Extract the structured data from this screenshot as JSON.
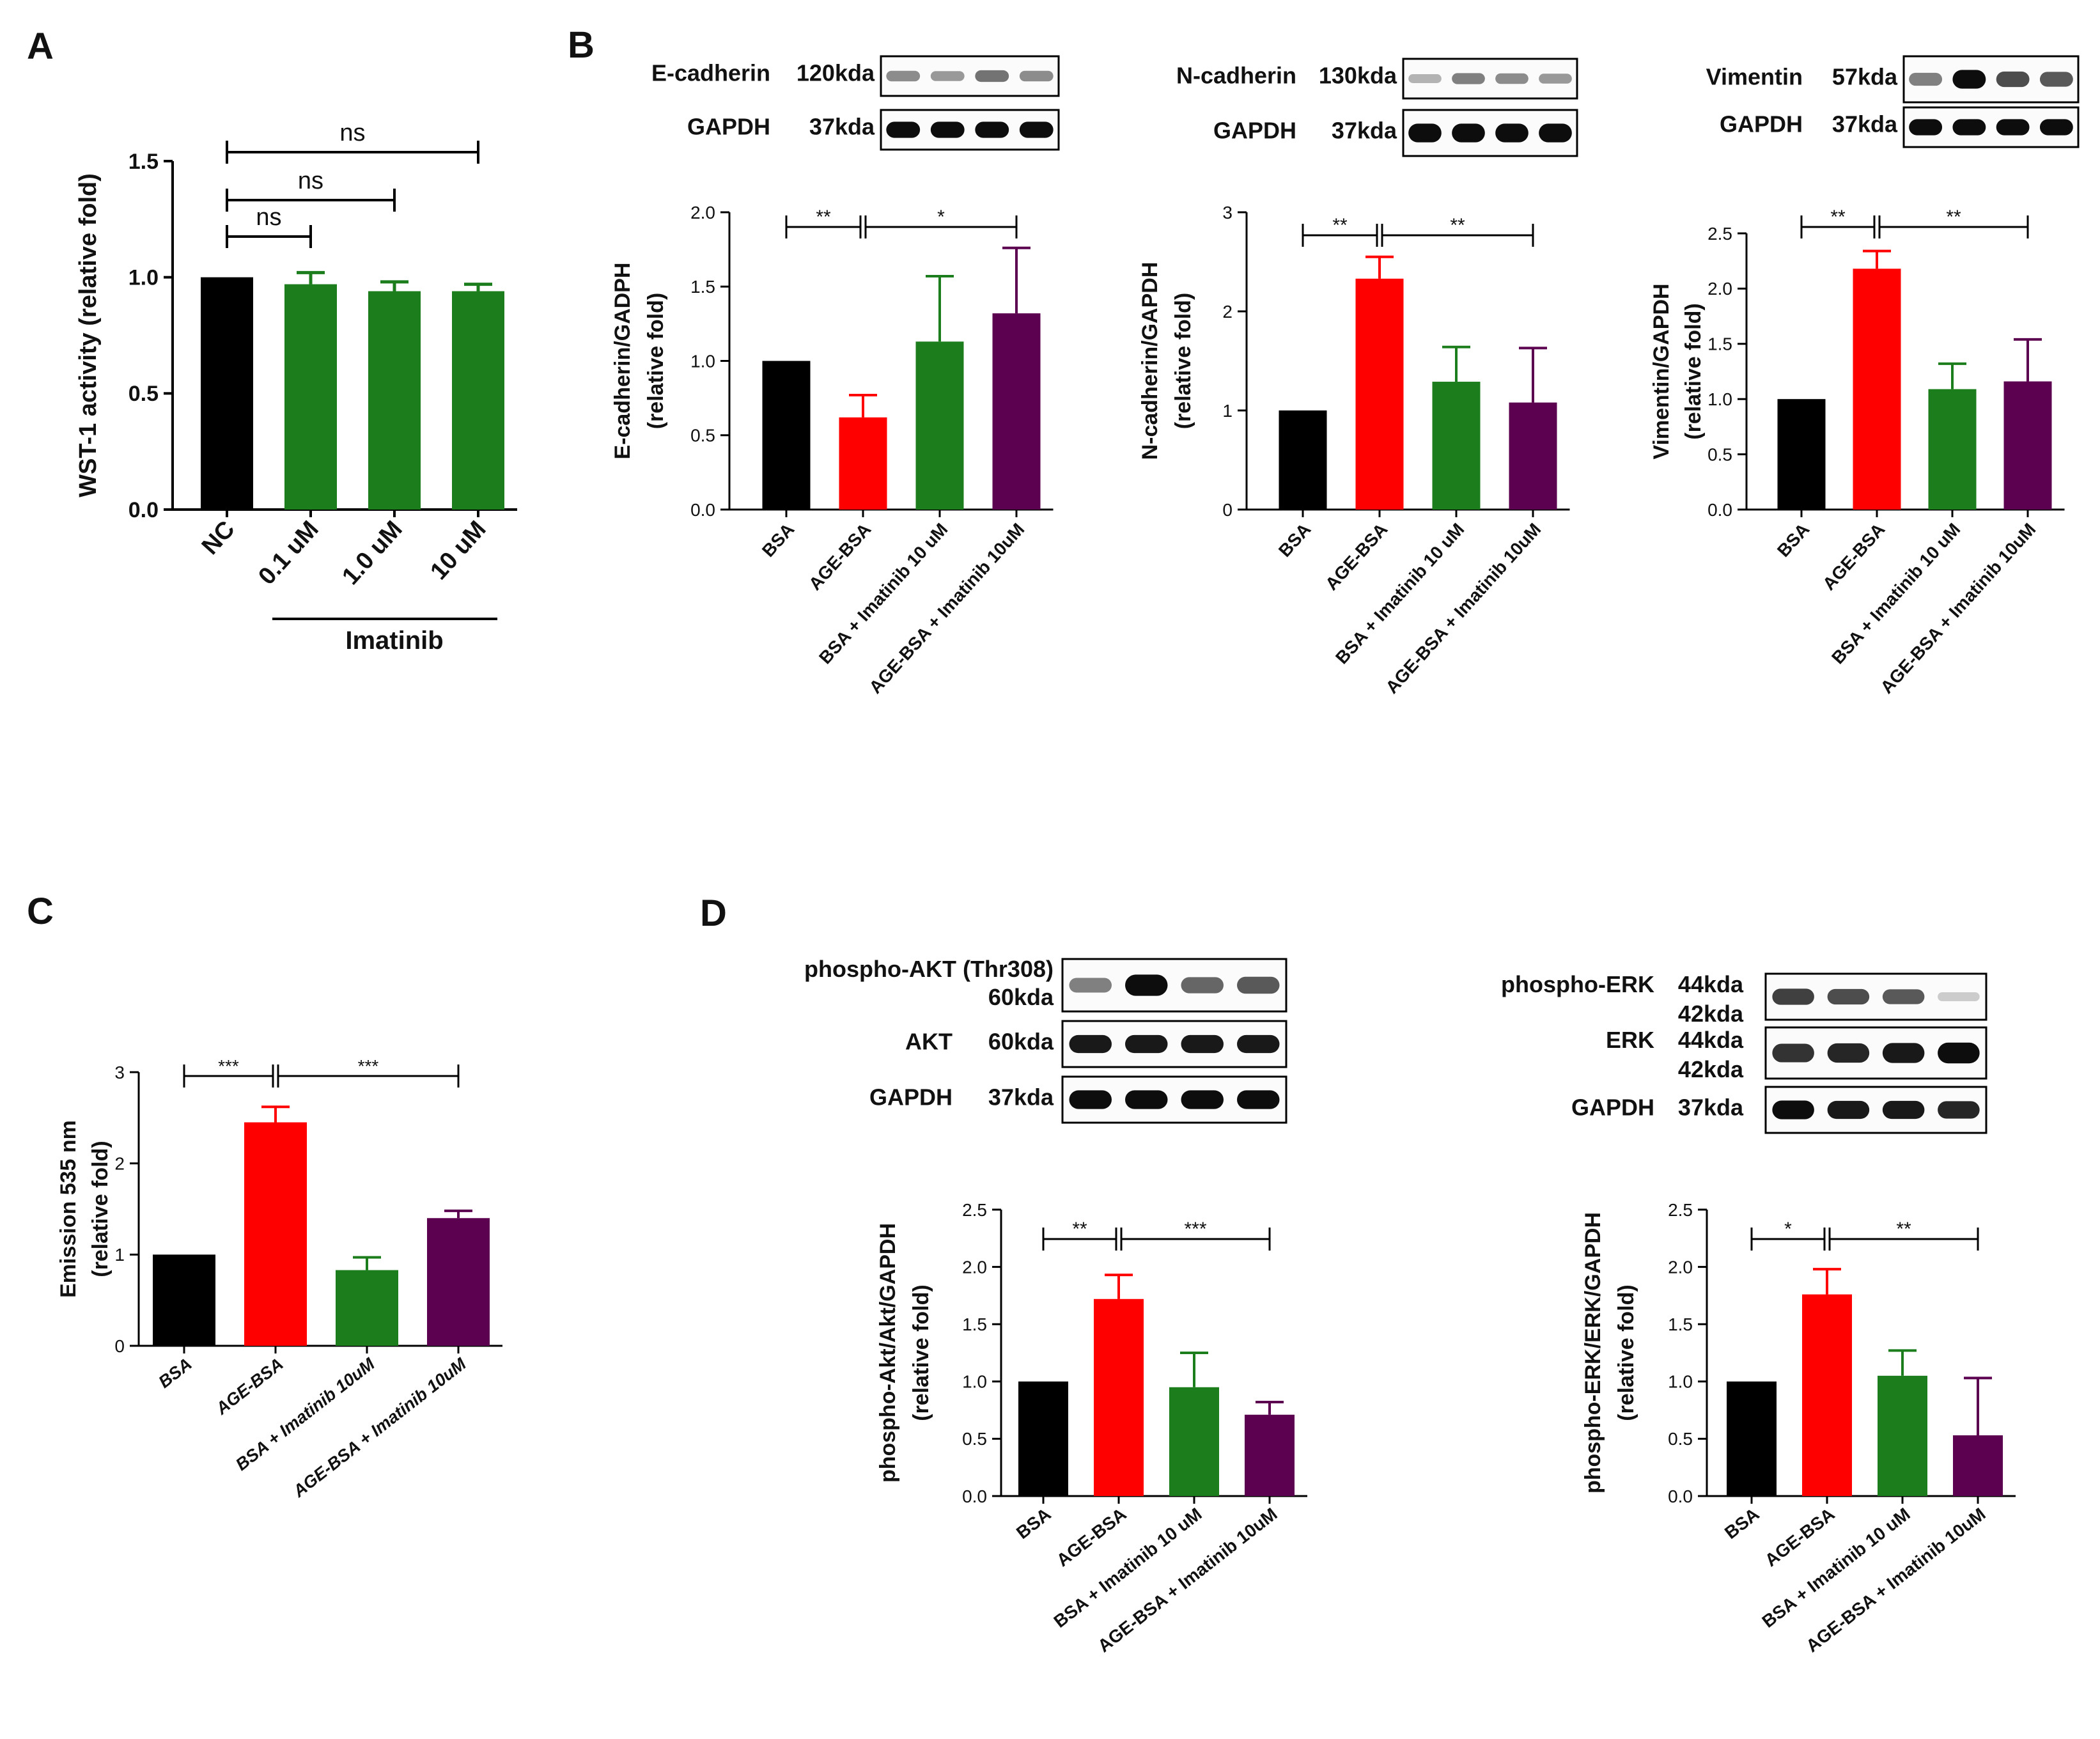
{
  "colors": {
    "black": "#000000",
    "red": "#ff0000",
    "green": "#1c7d1c",
    "purple": "#5c0050"
  },
  "panel_letters": [
    "A",
    "B",
    "C",
    "D"
  ],
  "blots": [
    {
      "rows": [
        {
          "protein": "E-cadherin",
          "kda": "120kda",
          "intensity": [
            0.45,
            0.4,
            0.55,
            0.45
          ]
        },
        {
          "protein": "GAPDH",
          "kda": "37kda",
          "intensity": [
            0.95,
            0.95,
            0.95,
            0.95
          ]
        }
      ]
    },
    {
      "rows": [
        {
          "protein": "N-cadherin",
          "kda": "130kda",
          "intensity": [
            0.3,
            0.5,
            0.45,
            0.4
          ]
        },
        {
          "protein": "GAPDH",
          "kda": "37kda",
          "intensity": [
            0.95,
            0.95,
            0.95,
            0.95
          ]
        }
      ]
    },
    {
      "rows": [
        {
          "protein": "Vimentin",
          "kda": "57kda",
          "intensity": [
            0.5,
            0.95,
            0.7,
            0.65
          ]
        },
        {
          "protein": "GAPDH",
          "kda": "37kda",
          "intensity": [
            0.95,
            0.95,
            0.95,
            0.95
          ]
        }
      ]
    },
    {
      "rows": [
        {
          "protein": "phospho-AKT (Thr308)",
          "kda": "60kda",
          "intensity": [
            0.5,
            0.95,
            0.6,
            0.65
          ]
        },
        {
          "protein": "AKT",
          "kda": "60kda",
          "intensity": [
            0.9,
            0.9,
            0.9,
            0.9
          ]
        },
        {
          "protein": "GAPDH",
          "kda": "37kda",
          "intensity": [
            0.95,
            0.95,
            0.95,
            0.95
          ]
        }
      ]
    },
    {
      "rows": [
        {
          "protein": "phospho-ERK",
          "kda": "44kda",
          "kda2": "42kda",
          "intensity": [
            0.75,
            0.7,
            0.65,
            0.2
          ]
        },
        {
          "protein": "ERK",
          "kda": "44kda",
          "kda2": "42kda",
          "intensity": [
            0.8,
            0.85,
            0.9,
            0.95
          ]
        },
        {
          "protein": "GAPDH",
          "kda": "37kda",
          "intensity": [
            0.95,
            0.9,
            0.9,
            0.85
          ]
        }
      ]
    }
  ],
  "chart_data": [
    {
      "id": "A",
      "type": "bar",
      "title": "",
      "ylabel": "WST-1 activity (relative fold)",
      "xlabel": "",
      "ylim": [
        0,
        1.5
      ],
      "yticks": [
        "0.0",
        "0.5",
        "1.0",
        "1.5"
      ],
      "categories": [
        "NC",
        "0.1 uM",
        "1.0 uM",
        "10 uM"
      ],
      "values": [
        1.0,
        0.97,
        0.94,
        0.94
      ],
      "errors": [
        0,
        0.05,
        0.04,
        0.03
      ],
      "bar_colors": [
        "black",
        "green",
        "green",
        "green"
      ],
      "group_label": "Imatinib",
      "significance": [
        {
          "from": 0,
          "to": 1,
          "label": "ns"
        },
        {
          "from": 0,
          "to": 2,
          "label": "ns"
        },
        {
          "from": 0,
          "to": 3,
          "label": "ns"
        }
      ]
    },
    {
      "id": "B1",
      "type": "bar",
      "ylabel": "E-cadherin/GADPH",
      "ylabel2": "(relative fold)",
      "ylim": [
        0,
        2.0
      ],
      "yticks": [
        "0.0",
        "0.5",
        "1.0",
        "1.5",
        "2.0"
      ],
      "categories": [
        "BSA",
        "AGE-BSA",
        "BSA + Imatinib 10 uM",
        "AGE-BSA + Imatinib 10uM"
      ],
      "values": [
        1.0,
        0.62,
        1.13,
        1.32
      ],
      "errors": [
        0,
        0.15,
        0.44,
        0.44
      ],
      "bar_colors": [
        "black",
        "red",
        "green",
        "purple"
      ],
      "significance": [
        {
          "from": 0,
          "to": 1,
          "label": "**"
        },
        {
          "from": 1,
          "to": 3,
          "label": "*"
        }
      ]
    },
    {
      "id": "B2",
      "type": "bar",
      "ylabel": "N-cadherin/GAPDH",
      "ylabel2": "(relative fold)",
      "ylim": [
        0,
        3
      ],
      "yticks": [
        "0",
        "1",
        "2",
        "3"
      ],
      "categories": [
        "BSA",
        "AGE-BSA",
        "BSA + Imatinib 10 uM",
        "AGE-BSA + Imatinib 10uM"
      ],
      "values": [
        1.0,
        2.33,
        1.29,
        1.08
      ],
      "errors": [
        0,
        0.22,
        0.35,
        0.55
      ],
      "bar_colors": [
        "black",
        "red",
        "green",
        "purple"
      ],
      "significance": [
        {
          "from": 0,
          "to": 1,
          "label": "**"
        },
        {
          "from": 1,
          "to": 3,
          "label": "**"
        }
      ]
    },
    {
      "id": "B3",
      "type": "bar",
      "ylabel": "Vimentin/GAPDH",
      "ylabel2": "(relative fold)",
      "ylim": [
        0,
        2.5
      ],
      "yticks": [
        "0.0",
        "0.5",
        "1.0",
        "1.5",
        "2.0",
        "2.5"
      ],
      "categories": [
        "BSA",
        "AGE-BSA",
        "BSA + Imatinib 10 uM",
        "AGE-BSA + Imatinib 10uM"
      ],
      "values": [
        1.0,
        2.18,
        1.09,
        1.16
      ],
      "errors": [
        0,
        0.16,
        0.23,
        0.38
      ],
      "bar_colors": [
        "black",
        "red",
        "green",
        "purple"
      ],
      "significance": [
        {
          "from": 0,
          "to": 1,
          "label": "**"
        },
        {
          "from": 1,
          "to": 3,
          "label": "**"
        }
      ]
    },
    {
      "id": "C",
      "type": "bar",
      "ylabel": "Emission 535 nm",
      "ylabel2": "(relative fold)",
      "ylim": [
        0,
        3
      ],
      "yticks": [
        "0",
        "1",
        "2",
        "3"
      ],
      "categories": [
        "BSA",
        "AGE-BSA",
        "BSA + Imatinib 10uM",
        "AGE-BSA + Imatinib 10uM"
      ],
      "values": [
        1.0,
        2.45,
        0.83,
        1.4
      ],
      "errors": [
        0,
        0.17,
        0.14,
        0.08
      ],
      "bar_colors": [
        "black",
        "red",
        "green",
        "purple"
      ],
      "italic_ticks": true,
      "significance": [
        {
          "from": 0,
          "to": 1,
          "label": "***"
        },
        {
          "from": 1,
          "to": 3,
          "label": "***"
        }
      ]
    },
    {
      "id": "D1",
      "type": "bar",
      "ylabel": "phospho-Akt/Akt/GAPDH",
      "ylabel2": "(relative fold)",
      "ylim": [
        0,
        2.5
      ],
      "yticks": [
        "0.0",
        "0.5",
        "1.0",
        "1.5",
        "2.0",
        "2.5"
      ],
      "categories": [
        "BSA",
        "AGE-BSA",
        "BSA + Imatinib 10 uM",
        "AGE-BSA + Imatinib 10uM"
      ],
      "values": [
        1.0,
        1.72,
        0.95,
        0.71
      ],
      "errors": [
        0,
        0.21,
        0.3,
        0.11
      ],
      "bar_colors": [
        "black",
        "red",
        "green",
        "purple"
      ],
      "significance": [
        {
          "from": 0,
          "to": 1,
          "label": "**"
        },
        {
          "from": 1,
          "to": 3,
          "label": "***"
        }
      ]
    },
    {
      "id": "D2",
      "type": "bar",
      "ylabel": "phospho-ERK/ERK/GAPDH",
      "ylabel2": "(relative fold)",
      "ylim": [
        0,
        2.5
      ],
      "yticks": [
        "0.0",
        "0.5",
        "1.0",
        "1.5",
        "2.0",
        "2.5"
      ],
      "categories": [
        "BSA",
        "AGE-BSA",
        "BSA + Imatinib 10 uM",
        "AGE-BSA + Imatinib 10uM"
      ],
      "values": [
        1.0,
        1.76,
        1.05,
        0.53
      ],
      "errors": [
        0,
        0.22,
        0.22,
        0.5
      ],
      "bar_colors": [
        "black",
        "red",
        "green",
        "purple"
      ],
      "significance": [
        {
          "from": 0,
          "to": 1,
          "label": "*"
        },
        {
          "from": 1,
          "to": 3,
          "label": "**"
        }
      ]
    }
  ]
}
